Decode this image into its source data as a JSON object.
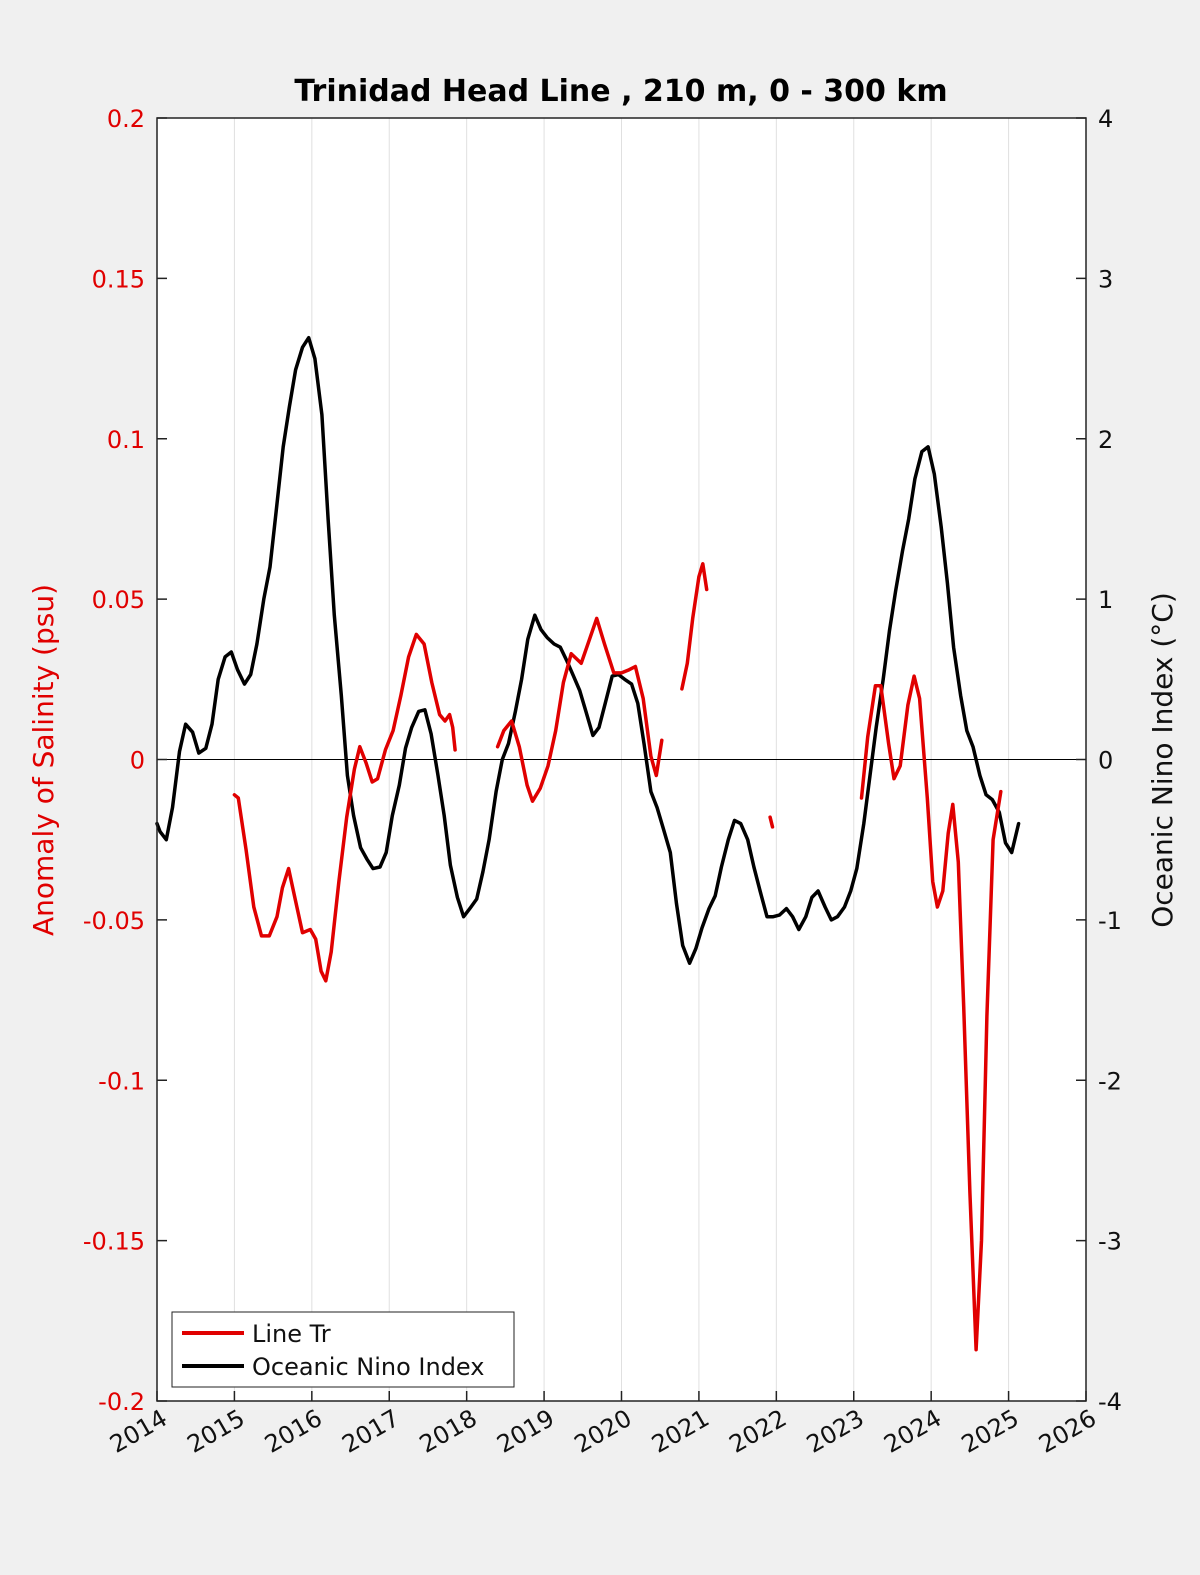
{
  "chart_data": {
    "type": "line",
    "title": "Trinidad Head Line , 210 m, 0 - 300 km",
    "xlabel": "",
    "xlim": [
      2014,
      2026
    ],
    "x_ticks": [
      "2014",
      "2015",
      "2016",
      "2017",
      "2018",
      "2019",
      "2020",
      "2021",
      "2022",
      "2023",
      "2024",
      "2025",
      "2026"
    ],
    "ylabel_left": "Anomaly of Salinity (psu)",
    "ylim_left": [
      -0.2,
      0.2
    ],
    "y_ticks_left": [
      "0.2",
      "0.15",
      "0.1",
      "0.05",
      "0",
      "-0.05",
      "-0.1",
      "-0.15",
      "-0.2"
    ],
    "ylabel_right": "Oceanic Nino Index (°C)",
    "ylim_right": [
      -4,
      4
    ],
    "y_ticks_right": [
      "4",
      "3",
      "2",
      "1",
      "0",
      "-1",
      "-2",
      "-3",
      "-4"
    ],
    "grid": "vertical",
    "legend_position": "bottom-left",
    "colors": {
      "salinity": "#e00000",
      "oni": "#000000",
      "background": "#f0f0f0"
    },
    "series": [
      {
        "name": "Line Tr",
        "axis": "left",
        "segments": [
          [
            [
              2015.0,
              -0.011
            ],
            [
              2015.05,
              -0.012
            ],
            [
              2015.15,
              -0.028
            ],
            [
              2015.25,
              -0.046
            ],
            [
              2015.35,
              -0.055
            ],
            [
              2015.45,
              -0.055
            ],
            [
              2015.55,
              -0.049
            ],
            [
              2015.62,
              -0.04
            ],
            [
              2015.7,
              -0.034
            ],
            [
              2015.78,
              -0.043
            ],
            [
              2015.88,
              -0.054
            ],
            [
              2015.98,
              -0.053
            ],
            [
              2016.05,
              -0.056
            ],
            [
              2016.12,
              -0.066
            ],
            [
              2016.18,
              -0.069
            ],
            [
              2016.25,
              -0.06
            ],
            [
              2016.35,
              -0.038
            ],
            [
              2016.45,
              -0.018
            ],
            [
              2016.55,
              -0.003
            ],
            [
              2016.62,
              0.004
            ],
            [
              2016.7,
              -0.001
            ],
            [
              2016.78,
              -0.007
            ],
            [
              2016.85,
              -0.006
            ],
            [
              2016.95,
              0.003
            ],
            [
              2017.05,
              0.009
            ],
            [
              2017.15,
              0.02
            ],
            [
              2017.25,
              0.032
            ],
            [
              2017.35,
              0.039
            ],
            [
              2017.45,
              0.036
            ],
            [
              2017.55,
              0.024
            ],
            [
              2017.65,
              0.014
            ],
            [
              2017.72,
              0.012
            ],
            [
              2017.78,
              0.014
            ],
            [
              2017.82,
              0.01
            ],
            [
              2017.85,
              0.003
            ]
          ],
          [
            [
              2018.4,
              0.004
            ],
            [
              2018.48,
              0.009
            ],
            [
              2018.58,
              0.012
            ],
            [
              2018.68,
              0.004
            ],
            [
              2018.78,
              -0.008
            ],
            [
              2018.85,
              -0.013
            ],
            [
              2018.95,
              -0.009
            ],
            [
              2019.05,
              -0.002
            ],
            [
              2019.15,
              0.009
            ],
            [
              2019.25,
              0.024
            ],
            [
              2019.35,
              0.033
            ],
            [
              2019.48,
              0.03
            ],
            [
              2019.58,
              0.037
            ],
            [
              2019.68,
              0.044
            ],
            [
              2019.78,
              0.036
            ],
            [
              2019.9,
              0.027
            ],
            [
              2020.0,
              0.027
            ],
            [
              2020.1,
              0.028
            ],
            [
              2020.18,
              0.029
            ],
            [
              2020.28,
              0.019
            ],
            [
              2020.38,
              0.001
            ],
            [
              2020.45,
              -0.005
            ],
            [
              2020.52,
              0.006
            ]
          ],
          [
            [
              2020.78,
              0.022
            ],
            [
              2020.85,
              0.03
            ],
            [
              2020.92,
              0.044
            ],
            [
              2021.0,
              0.057
            ],
            [
              2021.05,
              0.061
            ],
            [
              2021.1,
              0.053
            ]
          ],
          [
            [
              2021.92,
              -0.018
            ],
            [
              2021.95,
              -0.021
            ]
          ],
          [
            [
              2023.1,
              -0.012
            ],
            [
              2023.18,
              0.007
            ],
            [
              2023.28,
              0.023
            ],
            [
              2023.35,
              0.023
            ],
            [
              2023.45,
              0.005
            ],
            [
              2023.52,
              -0.006
            ],
            [
              2023.6,
              -0.002
            ],
            [
              2023.7,
              0.017
            ],
            [
              2023.78,
              0.026
            ],
            [
              2023.85,
              0.019
            ],
            [
              2023.95,
              -0.012
            ],
            [
              2024.02,
              -0.038
            ],
            [
              2024.08,
              -0.046
            ],
            [
              2024.15,
              -0.041
            ],
            [
              2024.22,
              -0.023
            ],
            [
              2024.28,
              -0.014
            ],
            [
              2024.35,
              -0.032
            ],
            [
              2024.42,
              -0.077
            ],
            [
              2024.5,
              -0.135
            ],
            [
              2024.58,
              -0.184
            ],
            [
              2024.65,
              -0.15
            ],
            [
              2024.72,
              -0.08
            ],
            [
              2024.8,
              -0.025
            ],
            [
              2024.9,
              -0.01
            ]
          ]
        ]
      },
      {
        "name": "Oceanic Nino Index",
        "axis": "right",
        "segments": [
          [
            [
              2014.0,
              -0.4
            ],
            [
              2014.04,
              -0.45
            ],
            [
              2014.12,
              -0.5
            ],
            [
              2014.2,
              -0.3
            ],
            [
              2014.29,
              0.05
            ],
            [
              2014.37,
              0.22
            ],
            [
              2014.46,
              0.17
            ],
            [
              2014.54,
              0.04
            ],
            [
              2014.63,
              0.07
            ],
            [
              2014.71,
              0.22
            ],
            [
              2014.79,
              0.5
            ],
            [
              2014.88,
              0.64
            ],
            [
              2014.96,
              0.67
            ],
            [
              2015.04,
              0.56
            ],
            [
              2015.13,
              0.47
            ],
            [
              2015.21,
              0.53
            ],
            [
              2015.29,
              0.72
            ],
            [
              2015.38,
              1.0
            ],
            [
              2015.46,
              1.2
            ],
            [
              2015.54,
              1.55
            ],
            [
              2015.63,
              1.95
            ],
            [
              2015.71,
              2.2
            ],
            [
              2015.79,
              2.43
            ],
            [
              2015.88,
              2.57
            ],
            [
              2015.96,
              2.63
            ],
            [
              2016.04,
              2.5
            ],
            [
              2016.13,
              2.15
            ],
            [
              2016.21,
              1.5
            ],
            [
              2016.29,
              0.9
            ],
            [
              2016.38,
              0.4
            ],
            [
              2016.46,
              -0.1
            ],
            [
              2016.54,
              -0.35
            ],
            [
              2016.63,
              -0.55
            ],
            [
              2016.71,
              -0.62
            ],
            [
              2016.79,
              -0.68
            ],
            [
              2016.88,
              -0.67
            ],
            [
              2016.96,
              -0.58
            ],
            [
              2017.04,
              -0.35
            ],
            [
              2017.13,
              -0.16
            ],
            [
              2017.21,
              0.07
            ],
            [
              2017.29,
              0.2
            ],
            [
              2017.38,
              0.3
            ],
            [
              2017.46,
              0.31
            ],
            [
              2017.54,
              0.16
            ],
            [
              2017.63,
              -0.1
            ],
            [
              2017.71,
              -0.35
            ],
            [
              2017.79,
              -0.66
            ],
            [
              2017.88,
              -0.86
            ],
            [
              2017.96,
              -0.98
            ],
            [
              2018.04,
              -0.93
            ],
            [
              2018.13,
              -0.87
            ],
            [
              2018.21,
              -0.7
            ],
            [
              2018.29,
              -0.5
            ],
            [
              2018.38,
              -0.2
            ],
            [
              2018.46,
              0.0
            ],
            [
              2018.54,
              0.1
            ],
            [
              2018.63,
              0.3
            ],
            [
              2018.71,
              0.5
            ],
            [
              2018.79,
              0.75
            ],
            [
              2018.88,
              0.9
            ],
            [
              2018.96,
              0.81
            ],
            [
              2019.04,
              0.76
            ],
            [
              2019.13,
              0.72
            ],
            [
              2019.21,
              0.7
            ],
            [
              2019.29,
              0.62
            ],
            [
              2019.38,
              0.52
            ],
            [
              2019.46,
              0.43
            ],
            [
              2019.54,
              0.3
            ],
            [
              2019.63,
              0.15
            ],
            [
              2019.71,
              0.2
            ],
            [
              2019.79,
              0.35
            ],
            [
              2019.88,
              0.52
            ],
            [
              2019.96,
              0.53
            ],
            [
              2020.04,
              0.5
            ],
            [
              2020.13,
              0.47
            ],
            [
              2020.21,
              0.35
            ],
            [
              2020.29,
              0.1
            ],
            [
              2020.38,
              -0.2
            ],
            [
              2020.46,
              -0.3
            ],
            [
              2020.54,
              -0.43
            ],
            [
              2020.63,
              -0.58
            ],
            [
              2020.71,
              -0.9
            ],
            [
              2020.79,
              -1.16
            ],
            [
              2020.88,
              -1.27
            ],
            [
              2020.96,
              -1.18
            ],
            [
              2021.04,
              -1.05
            ],
            [
              2021.13,
              -0.93
            ],
            [
              2021.21,
              -0.85
            ],
            [
              2021.29,
              -0.67
            ],
            [
              2021.38,
              -0.5
            ],
            [
              2021.46,
              -0.38
            ],
            [
              2021.54,
              -0.4
            ],
            [
              2021.63,
              -0.5
            ],
            [
              2021.71,
              -0.67
            ],
            [
              2021.79,
              -0.82
            ],
            [
              2021.88,
              -0.98
            ],
            [
              2021.96,
              -0.98
            ],
            [
              2022.04,
              -0.97
            ],
            [
              2022.13,
              -0.93
            ],
            [
              2022.21,
              -0.98
            ],
            [
              2022.29,
              -1.06
            ],
            [
              2022.38,
              -0.98
            ],
            [
              2022.46,
              -0.86
            ],
            [
              2022.54,
              -0.82
            ],
            [
              2022.63,
              -0.92
            ],
            [
              2022.71,
              -1.0
            ],
            [
              2022.79,
              -0.98
            ],
            [
              2022.88,
              -0.92
            ],
            [
              2022.96,
              -0.82
            ],
            [
              2023.04,
              -0.68
            ],
            [
              2023.13,
              -0.4
            ],
            [
              2023.21,
              -0.1
            ],
            [
              2023.29,
              0.2
            ],
            [
              2023.38,
              0.5
            ],
            [
              2023.46,
              0.8
            ],
            [
              2023.54,
              1.05
            ],
            [
              2023.63,
              1.3
            ],
            [
              2023.71,
              1.5
            ],
            [
              2023.79,
              1.75
            ],
            [
              2023.88,
              1.92
            ],
            [
              2023.96,
              1.95
            ],
            [
              2024.04,
              1.78
            ],
            [
              2024.13,
              1.45
            ],
            [
              2024.21,
              1.1
            ],
            [
              2024.29,
              0.7
            ],
            [
              2024.38,
              0.4
            ],
            [
              2024.46,
              0.18
            ],
            [
              2024.54,
              0.08
            ],
            [
              2024.63,
              -0.1
            ],
            [
              2024.71,
              -0.22
            ],
            [
              2024.79,
              -0.25
            ],
            [
              2024.88,
              -0.33
            ],
            [
              2024.96,
              -0.52
            ],
            [
              2025.04,
              -0.58
            ],
            [
              2025.13,
              -0.4
            ]
          ]
        ]
      }
    ]
  },
  "legend": {
    "items": [
      {
        "label": "Line Tr",
        "color": "#e00000"
      },
      {
        "label": "Oceanic Nino Index",
        "color": "#000000"
      }
    ]
  }
}
